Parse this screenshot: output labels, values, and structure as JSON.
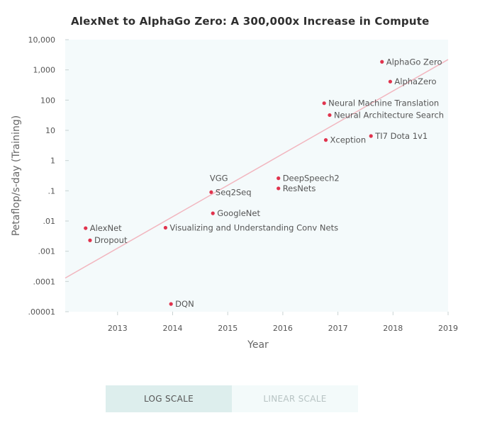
{
  "chart_data": {
    "type": "scatter",
    "title": "AlexNet to AlphaGo Zero: A 300,000x Increase in Compute",
    "xlabel": "Year",
    "ylabel": "Petaflop/s-day (Training)",
    "x_ticks": [
      "2013",
      "2014",
      "2015",
      "2016",
      "2017",
      "2018",
      "2019"
    ],
    "y_ticks": [
      "10,000",
      "1,000",
      "100",
      "10",
      "1",
      ".1",
      ".01",
      ".001",
      ".0001",
      ".00001"
    ],
    "xlim": [
      2012.05,
      2019
    ],
    "ylim": [
      1e-05,
      10000
    ],
    "y_scale": "log",
    "grid": false,
    "accent_color": "#e0334d",
    "points": [
      {
        "label": "AlexNet",
        "x": 2012.42,
        "y": 0.0058
      },
      {
        "label": "Dropout",
        "x": 2012.5,
        "y": 0.0023
      },
      {
        "label": "DQN",
        "x": 2013.97,
        "y": 1.8e-05
      },
      {
        "label": "Visualizing and Understanding Conv Nets",
        "x": 2013.87,
        "y": 0.006
      },
      {
        "label": "GoogleNet",
        "x": 2014.73,
        "y": 0.018
      },
      {
        "label": "Seq2Seq",
        "x": 2014.7,
        "y": 0.09
      },
      {
        "label": "VGG",
        "x": 2014.7,
        "y": 0.09
      },
      {
        "label": "DeepSpeech2",
        "x": 2015.92,
        "y": 0.26
      },
      {
        "label": "ResNets",
        "x": 2015.92,
        "y": 0.12
      },
      {
        "label": "Neural Machine Translation",
        "x": 2016.75,
        "y": 79
      },
      {
        "label": "Neural Architecture Search",
        "x": 2016.85,
        "y": 32
      },
      {
        "label": "Xception",
        "x": 2016.78,
        "y": 4.8
      },
      {
        "label": "TI7 Dota 1v1",
        "x": 2017.6,
        "y": 6.5
      },
      {
        "label": "AlphaZero",
        "x": 2017.95,
        "y": 410
      },
      {
        "label": "AlphaGo Zero",
        "x": 2017.8,
        "y": 1850
      }
    ],
    "trend_line": {
      "x": [
        2012.05,
        2019
      ],
      "y": [
        0.00013,
        2200
      ]
    }
  },
  "controls": {
    "log_label": "LOG SCALE",
    "linear_label": "LINEAR SCALE"
  }
}
